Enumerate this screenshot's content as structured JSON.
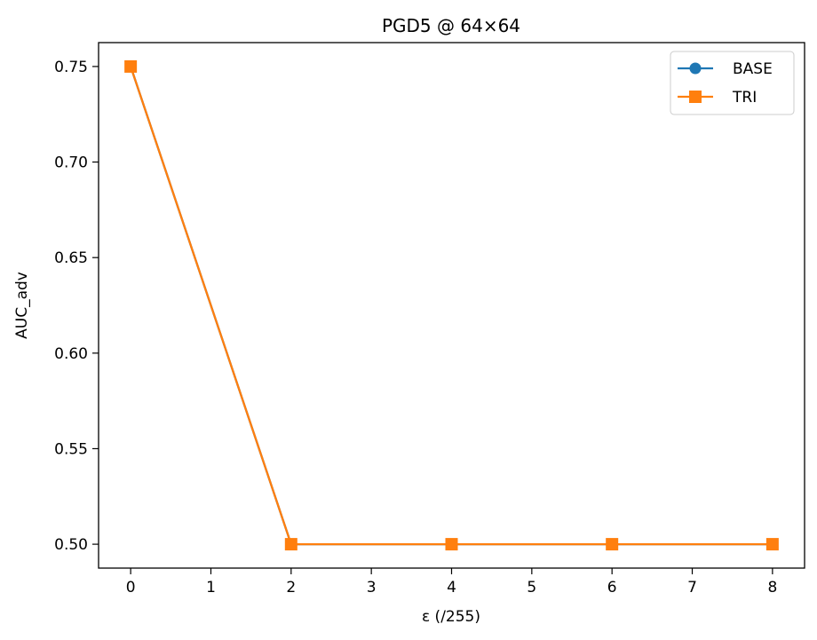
{
  "chart_data": {
    "type": "line",
    "title": "PGD5 @ 64×64",
    "xlabel": "ε (/255)",
    "ylabel": "AUC_adv",
    "xlim": [
      -0.4,
      8.4
    ],
    "ylim": [
      0.4875,
      0.7625
    ],
    "xticks": [
      0,
      1,
      2,
      3,
      4,
      5,
      6,
      7,
      8
    ],
    "xtick_labels": [
      "0",
      "1",
      "2",
      "3",
      "4",
      "5",
      "6",
      "7",
      "8"
    ],
    "yticks": [
      0.5,
      0.55,
      0.6,
      0.65,
      0.7,
      0.75
    ],
    "ytick_labels": [
      "0.50",
      "0.55",
      "0.60",
      "0.65",
      "0.70",
      "0.75"
    ],
    "grid": false,
    "legend_position": "top-right",
    "x": [
      0,
      2,
      4,
      6,
      8
    ],
    "series": [
      {
        "name": "BASE",
        "marker": "circle",
        "color": "#1f77b4",
        "values": [
          0.75,
          0.5,
          0.5,
          0.5,
          0.5
        ]
      },
      {
        "name": "TRI",
        "marker": "square",
        "color": "#ff7f0e",
        "values": [
          0.75,
          0.5,
          0.5,
          0.5,
          0.5
        ]
      }
    ]
  }
}
